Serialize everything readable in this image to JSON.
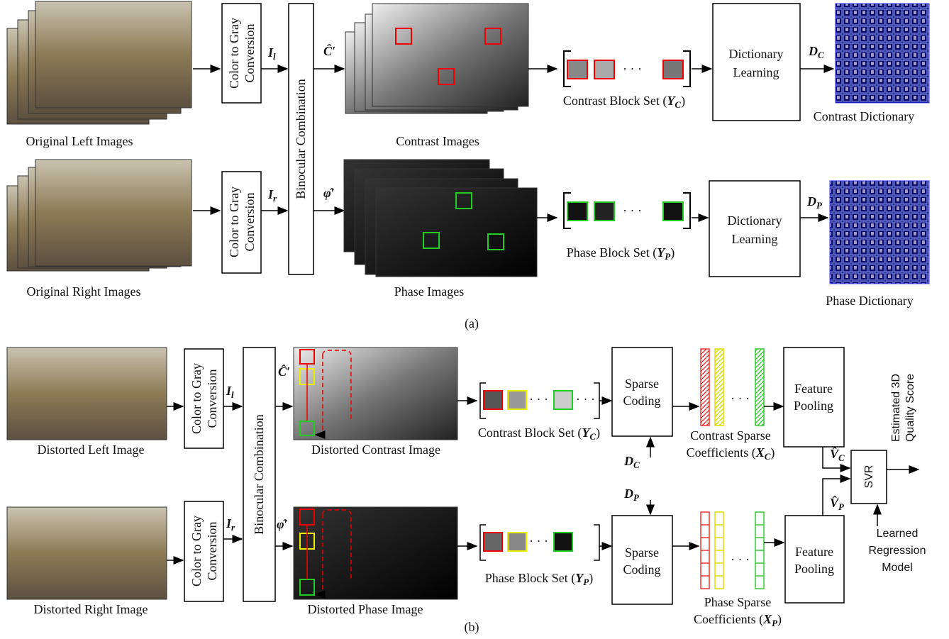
{
  "part_a": {
    "left_caption": "Original Left Images",
    "right_caption": "Original Right Images",
    "gray_top": [
      "Color to Gray",
      "Conversion"
    ],
    "gray_bottom": [
      "Color to Gray",
      "Conversion"
    ],
    "il": {
      "symbol": "I",
      "sub": "l"
    },
    "ir": {
      "symbol": "I",
      "sub": "r"
    },
    "binocular": "Binocular Combination",
    "c_hat": "Ĉ′",
    "phi_hat": "φ̂′",
    "contrast_caption": "Contrast Images",
    "phase_caption": "Phase Images",
    "contrast_block": {
      "prefix": "Contrast Block Set (",
      "symbol": "Y",
      "sub": "C",
      "suffix": ")"
    },
    "phase_block": {
      "prefix": "Phase Block Set (",
      "symbol": "Y",
      "sub": "P",
      "suffix": ")"
    },
    "dict_top": [
      "Dictionary",
      "Learning"
    ],
    "dict_bottom": [
      "Dictionary",
      "Learning"
    ],
    "dc": {
      "symbol": "D",
      "sub": "C"
    },
    "dp": {
      "symbol": "D",
      "sub": "P"
    },
    "contrast_dict_caption": "Contrast Dictionary",
    "phase_dict_caption": "Phase Dictionary",
    "label": "(a)"
  },
  "part_b": {
    "left_caption": "Distorted Left Image",
    "right_caption": "Distorted Right Image",
    "gray_top": [
      "Color to Gray",
      "Conversion"
    ],
    "gray_bottom": [
      "Color to Gray",
      "Conversion"
    ],
    "il": {
      "symbol": "I",
      "sub": "l"
    },
    "ir": {
      "symbol": "I",
      "sub": "r"
    },
    "binocular": "Binocular Combination",
    "c_hat": "Ĉ′",
    "phi_hat": "φ̂′",
    "contrast_caption": "Distorted Contrast Image",
    "phase_caption": "Distorted Phase Image",
    "contrast_block": {
      "prefix": "Contrast Block Set (",
      "symbol": "Y",
      "sub": "C",
      "suffix": ")"
    },
    "phase_block": {
      "prefix": "Phase Block Set (",
      "symbol": "Y",
      "sub": "P",
      "suffix": ")"
    },
    "sparse_top": [
      "Sparse",
      "Coding"
    ],
    "sparse_bottom": [
      "Sparse",
      "Coding"
    ],
    "dc": {
      "symbol": "D",
      "sub": "C"
    },
    "dp": {
      "symbol": "D",
      "sub": "P"
    },
    "contrast_coeff": {
      "line1": "Contrast Sparse",
      "prefix": "Coefficients (",
      "symbol": "X",
      "sub": "C",
      "suffix": ")"
    },
    "phase_coeff": {
      "line1": "Phase Sparse",
      "prefix": "Coefficients (",
      "symbol": "X",
      "sub": "P",
      "suffix": ")"
    },
    "pool_top": [
      "Feature",
      "Pooling"
    ],
    "pool_bottom": [
      "Feature",
      "Pooling"
    ],
    "vc": {
      "symbol": "V̂",
      "sub": "C"
    },
    "vp": {
      "symbol": "V̂",
      "sub": "P"
    },
    "svr": "SVR",
    "score": [
      "Estimated 3D",
      "Quality Score"
    ],
    "regression": [
      "Learned",
      "Regression",
      "Model"
    ],
    "label": "(b)"
  }
}
